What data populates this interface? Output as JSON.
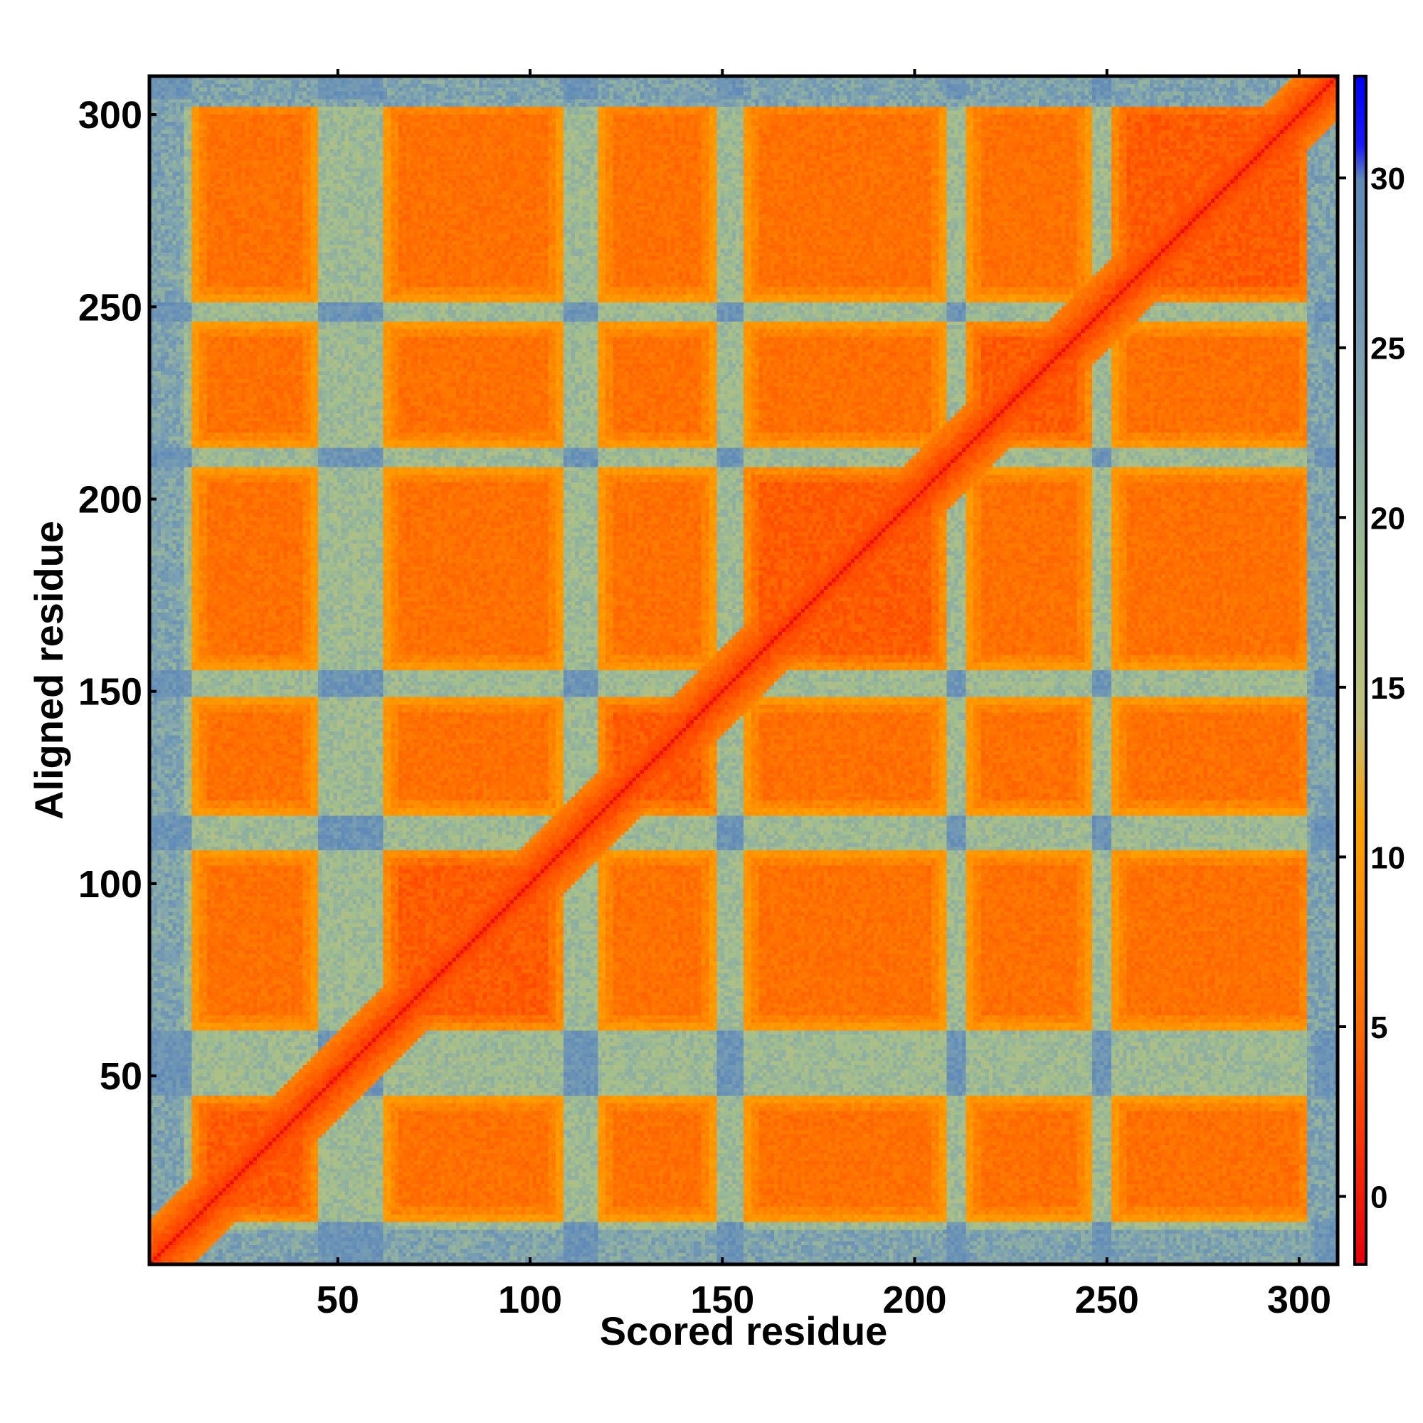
{
  "chart_data": {
    "type": "heatmap",
    "title": "",
    "xlabel": "Scored residue",
    "ylabel": "Aligned residue",
    "n_residues": 310,
    "xlim": [
      1,
      310
    ],
    "ylim": [
      1,
      310
    ],
    "x_ticks": [
      50,
      100,
      150,
      200,
      250,
      300
    ],
    "y_ticks": [
      50,
      100,
      150,
      200,
      250,
      300
    ],
    "colorbar": {
      "range": [
        -2,
        33
      ],
      "ticks": [
        0,
        5,
        10,
        15,
        20,
        25,
        30
      ],
      "colors": [
        {
          "value": -2,
          "color": "#e8000b"
        },
        {
          "value": 2,
          "color": "#ff3a00"
        },
        {
          "value": 5,
          "color": "#ff6a00"
        },
        {
          "value": 8,
          "color": "#ff8c00"
        },
        {
          "value": 11,
          "color": "#ffa000"
        },
        {
          "value": 14,
          "color": "#c2c07a"
        },
        {
          "value": 18,
          "color": "#a3bf8c"
        },
        {
          "value": 24,
          "color": "#7fa3b0"
        },
        {
          "value": 30,
          "color": "#5f89b8"
        },
        {
          "value": 31,
          "color": "#1a1aff"
        },
        {
          "value": 33,
          "color": "#0000ff"
        }
      ]
    },
    "domain_blocks": [
      [
        12,
        44
      ],
      [
        62,
        108
      ],
      [
        118,
        148
      ],
      [
        156,
        208
      ],
      [
        214,
        246
      ],
      [
        252,
        304
      ]
    ],
    "grid": false,
    "legend": "colorbar-right"
  }
}
